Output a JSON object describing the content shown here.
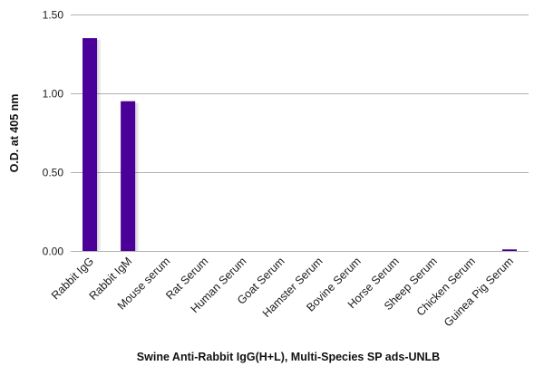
{
  "chart_data": {
    "type": "bar",
    "title": "",
    "xlabel": "Swine Anti-Rabbit IgG(H+L), Multi-Species SP ads-UNLB",
    "ylabel": "O.D. at 405 nm",
    "categories": [
      "Rabbit IgG",
      "Rabbit IgM",
      "Mouse serum",
      "Rat Serum",
      "Human Serum",
      "Goat Serum",
      "Hamster Serum",
      "Bovine Serum",
      "Horse Serum",
      "Sheep Serum",
      "Chicken Serum",
      "Guinea Pig Serum"
    ],
    "values": [
      1.35,
      0.95,
      0,
      0,
      0,
      0,
      0,
      0,
      0,
      0,
      0,
      0.01
    ],
    "ylim": [
      0,
      1.5
    ],
    "yticks": [
      0,
      0.5,
      1.0,
      1.5
    ],
    "ytick_labels": [
      "0.00",
      "0.50",
      "1.00",
      "1.50"
    ],
    "grid": true,
    "legend": "none",
    "bar_color": "#4a0099",
    "grid_color": "#b3b3b3"
  }
}
